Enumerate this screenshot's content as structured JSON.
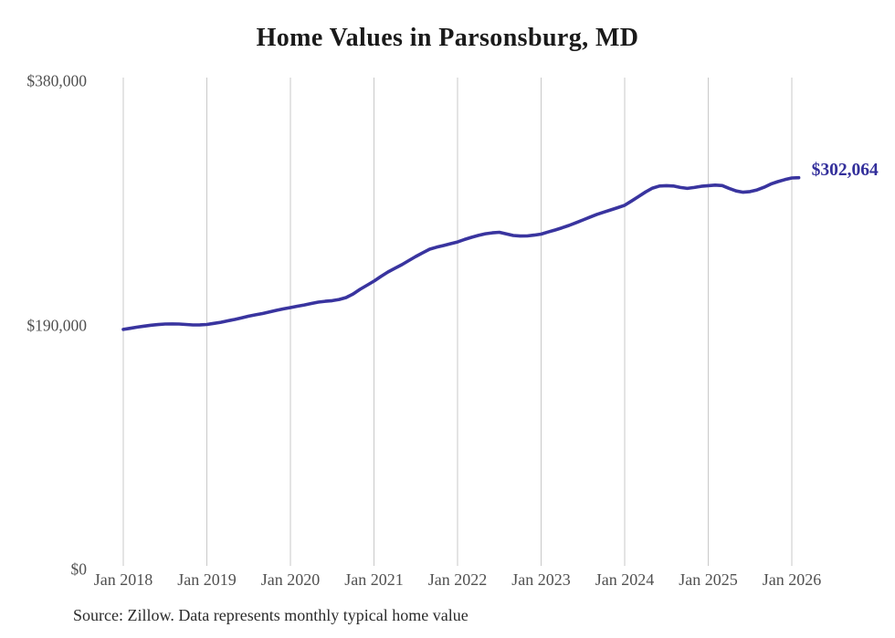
{
  "chart": {
    "title": "Home Values in Parsonsburg, MD",
    "end_label": "$302,064",
    "source": "Source: Zillow. Data represents monthly typical home value",
    "colors": {
      "line": "#39349f",
      "end_label": "#332f9b",
      "grid": "#c9c9c9",
      "tick_text": "#515151",
      "title_text": "#1a1a1a",
      "source_text": "#2b2b2b"
    }
  },
  "chart_data": {
    "type": "line",
    "title": "Home Values in Parsonsburg, MD",
    "xlabel": "",
    "ylabel": "",
    "ylim": [
      0,
      380000
    ],
    "x_range": [
      "2018-01",
      "2026-02"
    ],
    "grid": "vertical-only",
    "legend": "none",
    "y_ticks": [
      {
        "label": "$380,000",
        "value": 380000
      },
      {
        "label": "$190,000",
        "value": 190000
      },
      {
        "label": "$0",
        "value": 0
      }
    ],
    "x_ticks": [
      {
        "label": "Jan 2018",
        "year": 2018
      },
      {
        "label": "Jan 2019",
        "year": 2019
      },
      {
        "label": "Jan 2020",
        "year": 2020
      },
      {
        "label": "Jan 2021",
        "year": 2021
      },
      {
        "label": "Jan 2022",
        "year": 2022
      },
      {
        "label": "Jan 2023",
        "year": 2023
      },
      {
        "label": "Jan 2024",
        "year": 2024
      },
      {
        "label": "Jan 2025",
        "year": 2025
      },
      {
        "label": "Jan 2026",
        "year": 2026
      }
    ],
    "final_value": 302064,
    "series": [
      {
        "name": "Monthly typical home value",
        "points": [
          [
            "2018-01",
            184000
          ],
          [
            "2018-02",
            184900
          ],
          [
            "2018-03",
            185800
          ],
          [
            "2018-04",
            186600
          ],
          [
            "2018-05",
            187300
          ],
          [
            "2018-06",
            187800
          ],
          [
            "2018-07",
            188200
          ],
          [
            "2018-08",
            188300
          ],
          [
            "2018-09",
            188200
          ],
          [
            "2018-10",
            187900
          ],
          [
            "2018-11",
            187500
          ],
          [
            "2018-12",
            187600
          ],
          [
            "2019-01",
            187900
          ],
          [
            "2019-02",
            188700
          ],
          [
            "2019-03",
            189600
          ],
          [
            "2019-04",
            190700
          ],
          [
            "2019-05",
            191800
          ],
          [
            "2019-06",
            193000
          ],
          [
            "2019-07",
            194300
          ],
          [
            "2019-08",
            195400
          ],
          [
            "2019-09",
            196400
          ],
          [
            "2019-10",
            197600
          ],
          [
            "2019-11",
            198900
          ],
          [
            "2019-12",
            200000
          ],
          [
            "2020-01",
            201000
          ],
          [
            "2020-02",
            202100
          ],
          [
            "2020-03",
            203100
          ],
          [
            "2020-04",
            204200
          ],
          [
            "2020-05",
            205300
          ],
          [
            "2020-06",
            205900
          ],
          [
            "2020-07",
            206400
          ],
          [
            "2020-08",
            207300
          ],
          [
            "2020-09",
            208800
          ],
          [
            "2020-10",
            211600
          ],
          [
            "2020-11",
            215200
          ],
          [
            "2020-12",
            218400
          ],
          [
            "2021-01",
            221600
          ],
          [
            "2021-02",
            225200
          ],
          [
            "2021-03",
            228700
          ],
          [
            "2021-04",
            231600
          ],
          [
            "2021-05",
            234400
          ],
          [
            "2021-06",
            237600
          ],
          [
            "2021-07",
            240800
          ],
          [
            "2021-08",
            243700
          ],
          [
            "2021-09",
            246500
          ],
          [
            "2021-10",
            248000
          ],
          [
            "2021-11",
            249300
          ],
          [
            "2021-12",
            250700
          ],
          [
            "2022-01",
            252100
          ],
          [
            "2022-02",
            254000
          ],
          [
            "2022-03",
            255700
          ],
          [
            "2022-04",
            257200
          ],
          [
            "2022-05",
            258500
          ],
          [
            "2022-06",
            259200
          ],
          [
            "2022-07",
            259600
          ],
          [
            "2022-08",
            258400
          ],
          [
            "2022-09",
            257100
          ],
          [
            "2022-10",
            256700
          ],
          [
            "2022-11",
            256800
          ],
          [
            "2022-12",
            257400
          ],
          [
            "2023-01",
            258200
          ],
          [
            "2023-02",
            259800
          ],
          [
            "2023-03",
            261400
          ],
          [
            "2023-04",
            263100
          ],
          [
            "2023-05",
            264900
          ],
          [
            "2023-06",
            267000
          ],
          [
            "2023-07",
            269200
          ],
          [
            "2023-08",
            271400
          ],
          [
            "2023-09",
            273500
          ],
          [
            "2023-10",
            275300
          ],
          [
            "2023-11",
            277000
          ],
          [
            "2023-12",
            278800
          ],
          [
            "2024-01",
            280600
          ],
          [
            "2024-02",
            284000
          ],
          [
            "2024-03",
            287500
          ],
          [
            "2024-04",
            291000
          ],
          [
            "2024-05",
            294000
          ],
          [
            "2024-06",
            295600
          ],
          [
            "2024-07",
            295900
          ],
          [
            "2024-08",
            295600
          ],
          [
            "2024-09",
            294500
          ],
          [
            "2024-10",
            293800
          ],
          [
            "2024-11",
            294500
          ],
          [
            "2024-12",
            295400
          ],
          [
            "2025-01",
            295900
          ],
          [
            "2025-02",
            296300
          ],
          [
            "2025-03",
            296000
          ],
          [
            "2025-04",
            293800
          ],
          [
            "2025-05",
            291800
          ],
          [
            "2025-06",
            290800
          ],
          [
            "2025-07",
            291300
          ],
          [
            "2025-08",
            292600
          ],
          [
            "2025-09",
            294600
          ],
          [
            "2025-10",
            297200
          ],
          [
            "2025-11",
            299000
          ],
          [
            "2025-12",
            300600
          ],
          [
            "2026-01",
            301900
          ],
          [
            "2026-02",
            302064
          ]
        ]
      }
    ]
  }
}
